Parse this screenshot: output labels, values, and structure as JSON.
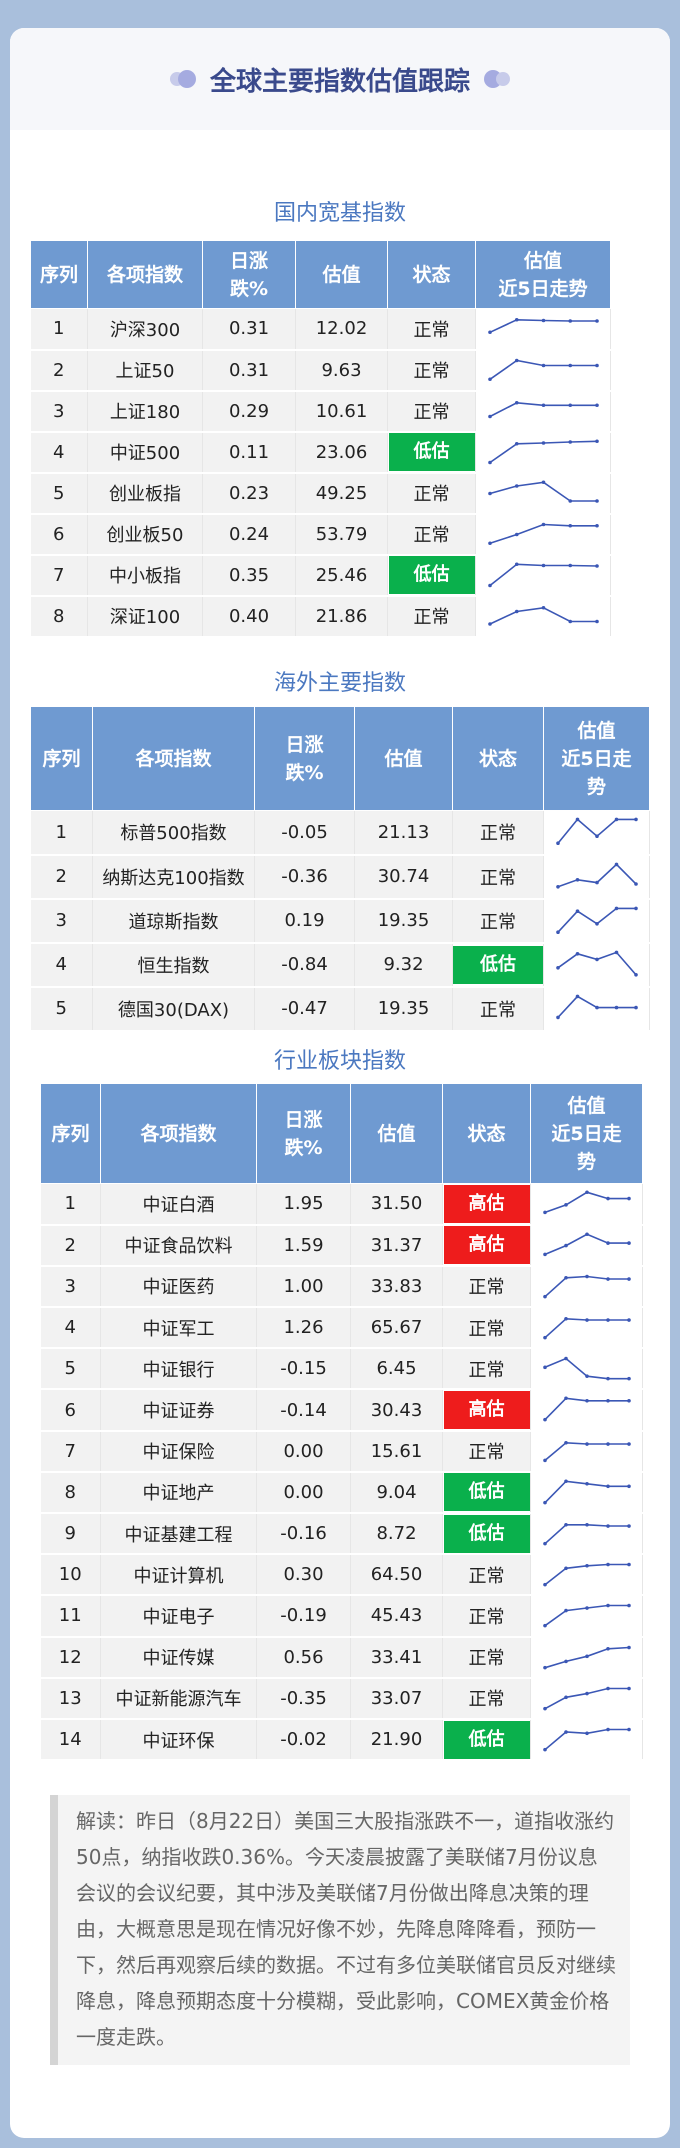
{
  "header": {
    "title": "全球主要指数估值跟踪"
  },
  "sections": [
    {
      "title": "国内宽基指数",
      "headers": [
        "序列",
        "各项指数",
        "日涨跌%",
        "估值",
        "状态",
        "估值近5日走势"
      ],
      "rows": [
        {
          "no": "1",
          "name": "沪深300",
          "change": "0.31",
          "val": "12.02",
          "status": "正常",
          "trend": [
            0.35,
            0.85,
            0.82,
            0.8,
            0.8
          ]
        },
        {
          "no": "2",
          "name": "上证50",
          "change": "0.31",
          "val": "9.63",
          "status": "正常",
          "trend": [
            0.15,
            0.9,
            0.7,
            0.7,
            0.7
          ]
        },
        {
          "no": "3",
          "name": "上证180",
          "change": "0.29",
          "val": "10.61",
          "status": "正常",
          "trend": [
            0.3,
            0.85,
            0.75,
            0.75,
            0.75
          ]
        },
        {
          "no": "4",
          "name": "中证500",
          "change": "0.11",
          "val": "23.06",
          "status": "低估",
          "trend": [
            0.1,
            0.85,
            0.88,
            0.92,
            0.95
          ]
        },
        {
          "no": "5",
          "name": "创业板指",
          "change": "0.23",
          "val": "49.25",
          "status": "正常",
          "trend": [
            0.5,
            0.8,
            0.95,
            0.2,
            0.2
          ]
        },
        {
          "no": "6",
          "name": "创业板50",
          "change": "0.24",
          "val": "53.79",
          "status": "正常",
          "trend": [
            0.15,
            0.5,
            0.9,
            0.85,
            0.85
          ]
        },
        {
          "no": "7",
          "name": "中小板指",
          "change": "0.35",
          "val": "25.46",
          "status": "低估",
          "trend": [
            0.1,
            0.95,
            0.9,
            0.9,
            0.88
          ]
        },
        {
          "no": "8",
          "name": "深证100",
          "change": "0.40",
          "val": "21.86",
          "status": "正常",
          "trend": [
            0.2,
            0.7,
            0.85,
            0.3,
            0.3
          ]
        }
      ]
    },
    {
      "title": "海外主要指数",
      "headers": [
        "序列",
        "各项指数",
        "日涨跌%",
        "估值",
        "状态",
        "估值近5日走势"
      ],
      "rows": [
        {
          "no": "1",
          "name": "标普500指数",
          "change": "-0.05",
          "val": "21.13",
          "status": "正常",
          "trend": [
            0.1,
            0.95,
            0.35,
            0.95,
            0.95
          ]
        },
        {
          "no": "2",
          "name": "纳斯达克100指数",
          "change": "-0.36",
          "val": "30.74",
          "status": "正常",
          "trend": [
            0.15,
            0.4,
            0.3,
            0.95,
            0.25
          ]
        },
        {
          "no": "3",
          "name": "道琼斯指数",
          "change": "0.19",
          "val": "19.35",
          "status": "正常",
          "trend": [
            0.1,
            0.85,
            0.4,
            0.95,
            0.95
          ]
        },
        {
          "no": "4",
          "name": "恒生指数",
          "change": "-0.84",
          "val": "9.32",
          "status": "低估",
          "trend": [
            0.4,
            0.9,
            0.7,
            0.95,
            0.15
          ]
        },
        {
          "no": "5",
          "name": "德国30(DAX)",
          "change": "-0.47",
          "val": "19.35",
          "status": "正常",
          "trend": [
            0.2,
            0.95,
            0.55,
            0.55,
            0.55
          ]
        }
      ]
    },
    {
      "title": "行业板块指数",
      "headers": [
        "序列",
        "各项指数",
        "日涨跌%",
        "估值",
        "状态",
        "估值近5日走势"
      ],
      "rows": [
        {
          "no": "1",
          "name": "中证白酒",
          "change": "1.95",
          "val": "31.50",
          "status": "高估",
          "trend": [
            0.15,
            0.45,
            0.95,
            0.7,
            0.7
          ]
        },
        {
          "no": "2",
          "name": "中证食品饮料",
          "change": "1.59",
          "val": "31.37",
          "status": "高估",
          "trend": [
            0.15,
            0.5,
            0.95,
            0.6,
            0.6
          ]
        },
        {
          "no": "3",
          "name": "中证医药",
          "change": "1.00",
          "val": "33.83",
          "status": "正常",
          "trend": [
            0.1,
            0.85,
            0.9,
            0.8,
            0.8
          ]
        },
        {
          "no": "4",
          "name": "中证军工",
          "change": "1.26",
          "val": "65.67",
          "status": "正常",
          "trend": [
            0.1,
            0.85,
            0.8,
            0.8,
            0.8
          ]
        },
        {
          "no": "5",
          "name": "中证银行",
          "change": "-0.15",
          "val": "6.45",
          "status": "正常",
          "trend": [
            0.55,
            0.9,
            0.2,
            0.1,
            0.1
          ]
        },
        {
          "no": "6",
          "name": "中证证券",
          "change": "-0.14",
          "val": "30.43",
          "status": "高估",
          "trend": [
            0.1,
            0.95,
            0.85,
            0.85,
            0.85
          ]
        },
        {
          "no": "7",
          "name": "中证保险",
          "change": "0.00",
          "val": "15.61",
          "status": "正常",
          "trend": [
            0.15,
            0.85,
            0.8,
            0.8,
            0.8
          ]
        },
        {
          "no": "8",
          "name": "中证地产",
          "change": "0.00",
          "val": "9.04",
          "status": "低估",
          "trend": [
            0.1,
            0.95,
            0.85,
            0.75,
            0.75
          ]
        },
        {
          "no": "9",
          "name": "中证基建工程",
          "change": "-0.16",
          "val": "8.72",
          "status": "低估",
          "trend": [
            0.1,
            0.85,
            0.85,
            0.8,
            0.8
          ]
        },
        {
          "no": "10",
          "name": "中证计算机",
          "change": "0.30",
          "val": "64.50",
          "status": "正常",
          "trend": [
            0.1,
            0.75,
            0.85,
            0.9,
            0.9
          ]
        },
        {
          "no": "11",
          "name": "中证电子",
          "change": "-0.19",
          "val": "45.43",
          "status": "正常",
          "trend": [
            0.1,
            0.7,
            0.8,
            0.9,
            0.9
          ]
        },
        {
          "no": "12",
          "name": "中证传媒",
          "change": "0.56",
          "val": "33.41",
          "status": "正常",
          "trend": [
            0.1,
            0.35,
            0.55,
            0.85,
            0.9
          ]
        },
        {
          "no": "13",
          "name": "中证新能源汽车",
          "change": "-0.35",
          "val": "33.07",
          "status": "正常",
          "trend": [
            0.1,
            0.55,
            0.7,
            0.9,
            0.9
          ]
        },
        {
          "no": "14",
          "name": "中证环保",
          "change": "-0.02",
          "val": "21.90",
          "status": "低估",
          "trend": [
            0.1,
            0.8,
            0.75,
            0.9,
            0.9
          ]
        }
      ]
    }
  ],
  "note": "解读：昨日（8月22日）美国三大股指涨跌不一，道指收涨约50点，纳指收跌0.36%。今天凌晨披露了美联储7月份议息会议的会议纪要，其中涉及美联储7月份做出降息决策的理由，大概意思是现在情况好像不妙，先降息降降看，预防一下，然后再观察后续的数据。不过有多位美联储官员反对继续降息，降息预期态度十分模糊，受此影响，COMEX黄金价格一度走跌。",
  "colors": {
    "low": "#0ab04c",
    "high": "#ee1c1c",
    "header": "#6f9ad1",
    "accent": "#3a4a8c"
  }
}
